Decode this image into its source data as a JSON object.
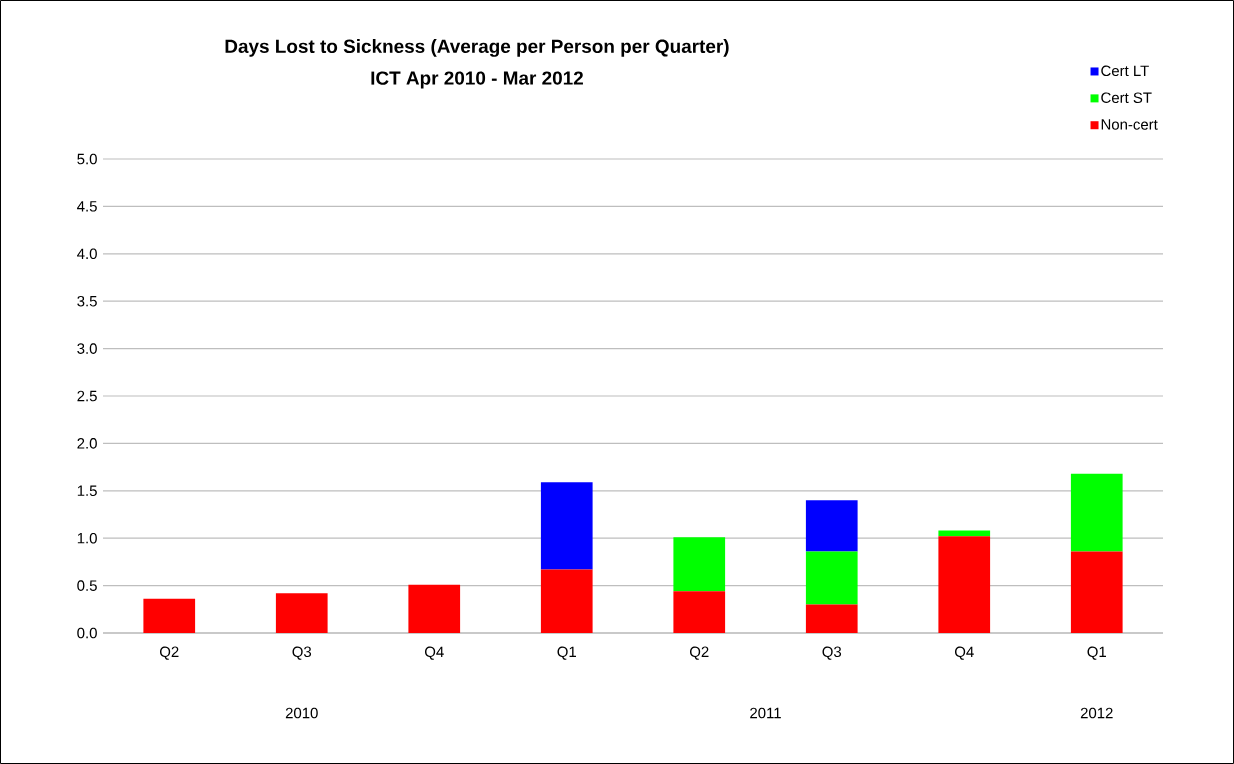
{
  "chart_data": {
    "type": "bar",
    "stacked": true,
    "title": "Days Lost to Sickness (Average per Person per Quarter)",
    "subtitle": "ICT Apr 2010 - Mar 2012",
    "categories": [
      "Q2",
      "Q3",
      "Q4",
      "Q1",
      "Q2",
      "Q3",
      "Q4",
      "Q1"
    ],
    "series": [
      {
        "name": "Non-cert",
        "color": "#ff0000",
        "values": [
          0.36,
          0.42,
          0.51,
          0.67,
          0.44,
          0.3,
          1.02,
          0.86
        ]
      },
      {
        "name": "Cert ST",
        "color": "#00ff00",
        "values": [
          null,
          null,
          null,
          null,
          0.57,
          0.56,
          0.06,
          0.82
        ]
      },
      {
        "name": "Cert LT",
        "color": "#0000ff",
        "values": [
          null,
          null,
          null,
          0.92,
          null,
          0.54,
          null,
          null
        ]
      }
    ],
    "ylim": [
      0,
      5
    ],
    "yticks": [
      {
        "value": 0,
        "label": "0.0"
      },
      {
        "value": 0.5,
        "label": "0.5"
      },
      {
        "value": 1,
        "label": "1.0"
      },
      {
        "value": 1.5,
        "label": "1.5"
      },
      {
        "value": 2,
        "label": "2.0"
      },
      {
        "value": 2.5,
        "label": "2.5"
      },
      {
        "value": 3,
        "label": "3.0"
      },
      {
        "value": 3.5,
        "label": "3.5"
      },
      {
        "value": 4,
        "label": "4.0"
      },
      {
        "value": 4.5,
        "label": "4.5"
      },
      {
        "value": 5,
        "label": "5.0"
      }
    ],
    "grid": "y",
    "legend": "top right",
    "annotations": [
      "2010",
      "2011",
      "2012"
    ]
  }
}
